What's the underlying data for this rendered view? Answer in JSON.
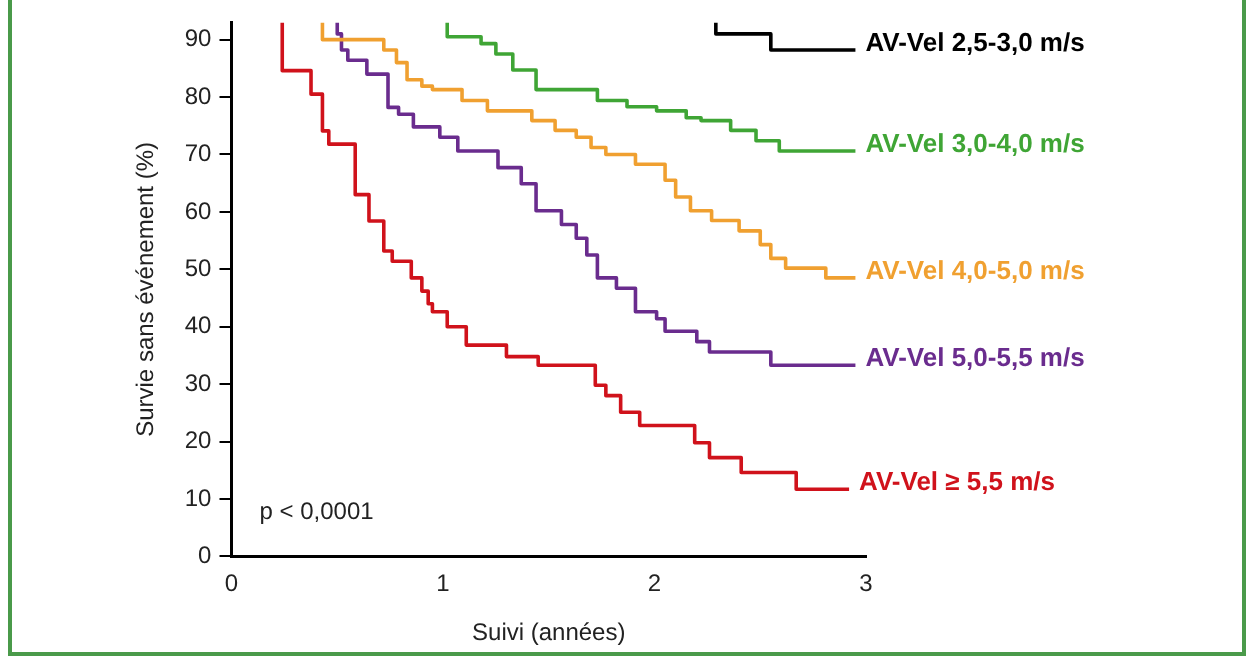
{
  "chart_data": {
    "type": "step",
    "xlabel": "Suivi (années)",
    "ylabel": "Survie sans événement (%)",
    "xlim": [
      0,
      3
    ],
    "xticks": [
      0,
      1,
      2,
      3
    ],
    "ylim": [
      0,
      93
    ],
    "yticks": [
      0,
      10,
      20,
      30,
      40,
      50,
      60,
      70,
      80,
      90
    ],
    "grid": false,
    "legend": false,
    "marker": "none",
    "line_style": "solid",
    "annotations": [
      "p < 0,0001"
    ],
    "series": [
      {
        "name": "AV-Vel 2,5-3,0 m/s",
        "color": "#000000",
        "x": [
          2.29,
          2.29,
          2.55,
          2.62,
          2.95
        ],
        "values": [
          93,
          91.6,
          91,
          88.2,
          88.2
        ]
      },
      {
        "name": "AV-Vel 3,0-4,0 m/s",
        "color": "#3fa535",
        "x": [
          1.02,
          1.02,
          1.18,
          1.25,
          1.33,
          1.44,
          1.73,
          1.87,
          2.01,
          2.15,
          2.22,
          2.36,
          2.48,
          2.59,
          2.69,
          2.95
        ],
        "values": [
          93,
          91.6,
          90.5,
          89.3,
          87.5,
          84.7,
          81.3,
          79.4,
          78.3,
          77.6,
          76.4,
          75.9,
          74.2,
          72.4,
          70.6,
          70.6
        ]
      },
      {
        "name": "AV-Vel 4,0-5,0 m/s",
        "color": "#f0a030",
        "x": [
          0.43,
          0.43,
          0.72,
          0.78,
          0.83,
          0.9,
          0.95,
          1.09,
          1.21,
          1.42,
          1.53,
          1.63,
          1.7,
          1.77,
          1.91,
          2.05,
          2.1,
          2.17,
          2.27,
          2.4,
          2.5,
          2.55,
          2.62,
          2.81,
          2.9,
          2.95
        ],
        "values": [
          93,
          91,
          90,
          88.2,
          86,
          83,
          81.9,
          81.3,
          79.4,
          77.6,
          75.9,
          74.2,
          73,
          71.2,
          70,
          68.3,
          65.5,
          62.6,
          60.2,
          58.5,
          56.7,
          54.3,
          51.9,
          50.2,
          48.5,
          48.5
        ]
      },
      {
        "name": "AV-Vel 5,0-5,5 m/s",
        "color": "#6a2c8e",
        "x": [
          0.5,
          0.52,
          0.55,
          0.64,
          0.74,
          0.79,
          0.86,
          0.985,
          1.07,
          1.26,
          1.37,
          1.44,
          1.56,
          1.63,
          1.68,
          1.73,
          1.82,
          1.91,
          2.01,
          2.05,
          2.2,
          2.26,
          2.55,
          2.87,
          2.95
        ],
        "values": [
          93,
          91,
          88.2,
          86.4,
          84,
          78.2,
          77,
          74.8,
          73,
          70.6,
          67.7,
          64.9,
          60.2,
          57.8,
          55.4,
          52.5,
          48.5,
          46.7,
          42.6,
          41.4,
          39.2,
          37.4,
          35.6,
          33.3,
          33.3
        ]
      },
      {
        "name": "AV-Vel ≥ 5,5 m/s",
        "color": "#d0121b",
        "x": [
          0.24,
          0.24,
          0.376,
          0.43,
          0.46,
          0.585,
          0.65,
          0.72,
          0.76,
          0.85,
          0.9,
          0.93,
          0.95,
          1.02,
          1.11,
          1.3,
          1.45,
          1.72,
          1.77,
          1.84,
          1.93,
          2.19,
          2.26,
          2.41,
          2.67,
          2.72,
          2.92
        ],
        "values": [
          93,
          89.3,
          84.6,
          80.5,
          74.1,
          71.8,
          63,
          58.4,
          53.2,
          51.4,
          48.5,
          46.2,
          44,
          42.6,
          40,
          36.8,
          34.8,
          33.3,
          29.8,
          28,
          25.1,
          22.8,
          19.8,
          17.2,
          14.6,
          11.7,
          11.7
        ]
      }
    ]
  }
}
